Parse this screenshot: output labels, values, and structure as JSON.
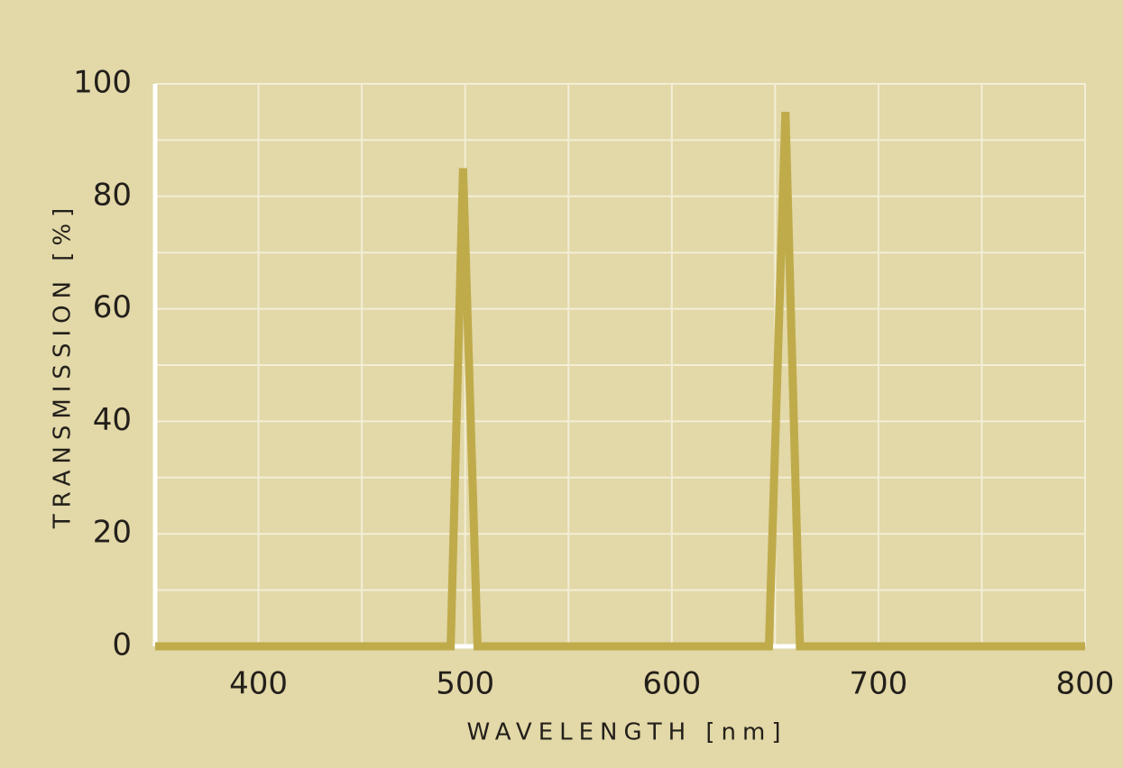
{
  "chart_data": {
    "type": "line",
    "x_label": "WAVELENGTH [nm]",
    "y_label": "TRANSMISSION [%]",
    "x": [
      350,
      493,
      499,
      506,
      647,
      655,
      662,
      800
    ],
    "series": [
      {
        "color": "#bfab4a",
        "values": [
          0,
          0,
          85,
          0,
          0,
          95,
          0,
          0
        ]
      }
    ],
    "xlim": [
      350,
      800
    ],
    "xticks": [
      400,
      500,
      600,
      700,
      800
    ],
    "x_minor_ticks": [
      450,
      550,
      650,
      750
    ],
    "ylim": [
      0,
      100
    ],
    "yticks": [
      0,
      20,
      40,
      60,
      80,
      100
    ],
    "y_minor_ticks": [
      10,
      30,
      50,
      70,
      90
    ],
    "grid": true
  }
}
